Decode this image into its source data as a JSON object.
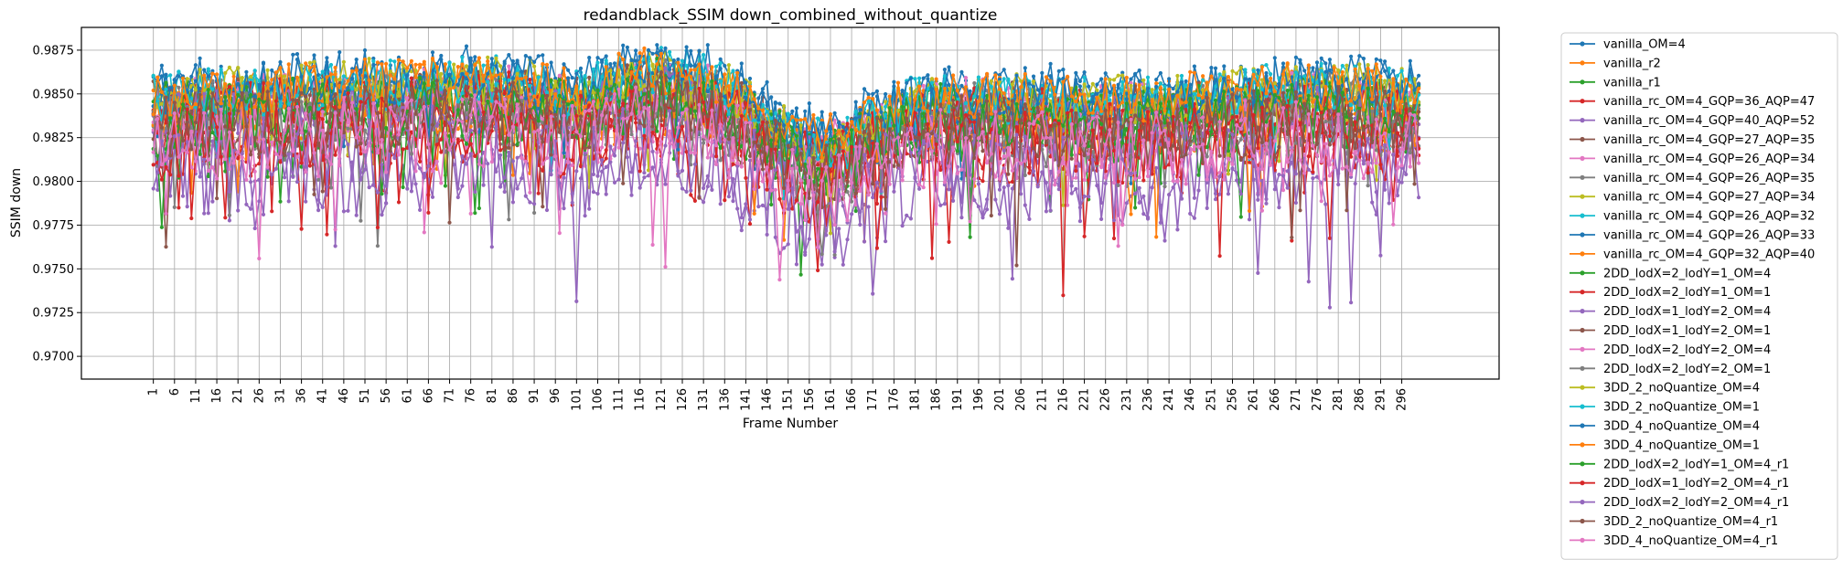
{
  "chart_data": {
    "type": "line",
    "title": "redandblack_SSIM down_combined_without_quantize",
    "xlabel": "Frame Number",
    "ylabel": "SSIM down",
    "x_range": [
      1,
      300
    ],
    "xticks": [
      1,
      6,
      11,
      16,
      21,
      26,
      31,
      36,
      41,
      46,
      51,
      56,
      61,
      66,
      71,
      76,
      81,
      86,
      91,
      96,
      101,
      106,
      111,
      116,
      121,
      126,
      131,
      136,
      141,
      146,
      151,
      156,
      161,
      166,
      171,
      176,
      181,
      186,
      191,
      196,
      201,
      206,
      211,
      216,
      221,
      226,
      231,
      236,
      241,
      246,
      251,
      256,
      261,
      266,
      271,
      276,
      281,
      286,
      291,
      296
    ],
    "xtick_labels": [
      "1",
      "6",
      "11",
      "16",
      "21",
      "26",
      "31",
      "36",
      "41",
      "46",
      "51",
      "56",
      "61",
      "66",
      "71",
      "76",
      "81",
      "86",
      "91",
      "96",
      "101",
      "106",
      "111",
      "116",
      "121",
      "126",
      "131",
      "136",
      "141",
      "146",
      "151",
      "156",
      "161",
      "166",
      "171",
      "176",
      "181",
      "186",
      "191",
      "196",
      "201",
      "206",
      "211",
      "216",
      "221",
      "226",
      "231",
      "236",
      "241",
      "246",
      "251",
      "256",
      "261",
      "266",
      "271",
      "276",
      "281",
      "286",
      "291",
      "296"
    ],
    "ylim": [
      0.9687,
      0.9888
    ],
    "yticks": [
      0.97,
      0.9725,
      0.975,
      0.9775,
      0.98,
      0.9825,
      0.985,
      0.9875
    ],
    "ytick_labels": [
      "0.9700",
      "0.9725",
      "0.9750",
      "0.9775",
      "0.9800",
      "0.9825",
      "0.9850",
      "0.9875"
    ],
    "grid": true,
    "legend_position": "outside-right",
    "series": [
      {
        "name": "vanilla_OM=4",
        "color": "#1f77b4",
        "offset": 0.0018,
        "amp": 0.0014
      },
      {
        "name": "vanilla_r2",
        "color": "#ff7f0e",
        "offset": 0.0008,
        "amp": 0.0015
      },
      {
        "name": "vanilla_r1",
        "color": "#2ca02c",
        "offset": -0.0002,
        "amp": 0.0018
      },
      {
        "name": "vanilla_rc_OM=4_GQP=36_AQP=47",
        "color": "#d62728",
        "offset": -0.0012,
        "amp": 0.0022
      },
      {
        "name": "vanilla_rc_OM=4_GQP=40_AQP=52",
        "color": "#9467bd",
        "offset": -0.0034,
        "amp": 0.003
      },
      {
        "name": "vanilla_rc_OM=4_GQP=27_AQP=35",
        "color": "#8c564b",
        "offset": 0.0004,
        "amp": 0.0016
      },
      {
        "name": "vanilla_rc_OM=4_GQP=26_AQP=34",
        "color": "#e377c2",
        "offset": 0.0006,
        "amp": 0.0016
      },
      {
        "name": "vanilla_rc_OM=4_GQP=26_AQP=35",
        "color": "#7f7f7f",
        "offset": 0.0005,
        "amp": 0.0015
      },
      {
        "name": "vanilla_rc_OM=4_GQP=27_AQP=34",
        "color": "#bcbd22",
        "offset": 0.0004,
        "amp": 0.0015
      },
      {
        "name": "vanilla_rc_OM=4_GQP=26_AQP=32",
        "color": "#17becf",
        "offset": 0.0012,
        "amp": 0.0014
      },
      {
        "name": "vanilla_rc_OM=4_GQP=26_AQP=33",
        "color": "#1f77b4",
        "offset": 0.001,
        "amp": 0.0014
      },
      {
        "name": "vanilla_rc_OM=4_GQP=32_AQP=40",
        "color": "#ff7f0e",
        "offset": -0.0002,
        "amp": 0.0018
      },
      {
        "name": "2DD_lodX=2_lodY=1_OM=4",
        "color": "#2ca02c",
        "offset": 0.0002,
        "amp": 0.0017
      },
      {
        "name": "2DD_lodX=2_lodY=1_OM=1",
        "color": "#d62728",
        "offset": 0.0,
        "amp": 0.0017
      },
      {
        "name": "2DD_lodX=1_lodY=2_OM=4",
        "color": "#9467bd",
        "offset": -0.0004,
        "amp": 0.0018
      },
      {
        "name": "2DD_lodX=1_lodY=2_OM=1",
        "color": "#8c564b",
        "offset": -0.0006,
        "amp": 0.0019
      },
      {
        "name": "2DD_lodX=2_lodY=2_OM=4",
        "color": "#e377c2",
        "offset": -0.0014,
        "amp": 0.0021
      },
      {
        "name": "2DD_lodX=2_lodY=2_OM=1",
        "color": "#7f7f7f",
        "offset": -0.001,
        "amp": 0.002
      },
      {
        "name": "3DD_2_noQuantize_OM=4",
        "color": "#bcbd22",
        "offset": 0.0012,
        "amp": 0.0014
      },
      {
        "name": "3DD_2_noQuantize_OM=1",
        "color": "#17becf",
        "offset": 0.001,
        "amp": 0.0014
      },
      {
        "name": "3DD_4_noQuantize_OM=4",
        "color": "#1f77b4",
        "offset": 0.0014,
        "amp": 0.0014
      },
      {
        "name": "3DD_4_noQuantize_OM=1",
        "color": "#ff7f0e",
        "offset": 0.0012,
        "amp": 0.0014
      },
      {
        "name": "2DD_lodX=2_lodY=1_OM=4_r1",
        "color": "#2ca02c",
        "offset": -0.0006,
        "amp": 0.0019
      },
      {
        "name": "2DD_lodX=1_lodY=2_OM=4_r1",
        "color": "#d62728",
        "offset": -0.0016,
        "amp": 0.0022
      },
      {
        "name": "2DD_lodX=2_lodY=2_OM=4_r1",
        "color": "#9467bd",
        "offset": -0.003,
        "amp": 0.0028
      },
      {
        "name": "3DD_2_noQuantize_OM=4_r1",
        "color": "#8c564b",
        "offset": -0.0008,
        "amp": 0.002
      },
      {
        "name": "3DD_4_noQuantize_OM=4_r1",
        "color": "#e377c2",
        "offset": -0.0018,
        "amp": 0.0022
      }
    ]
  }
}
